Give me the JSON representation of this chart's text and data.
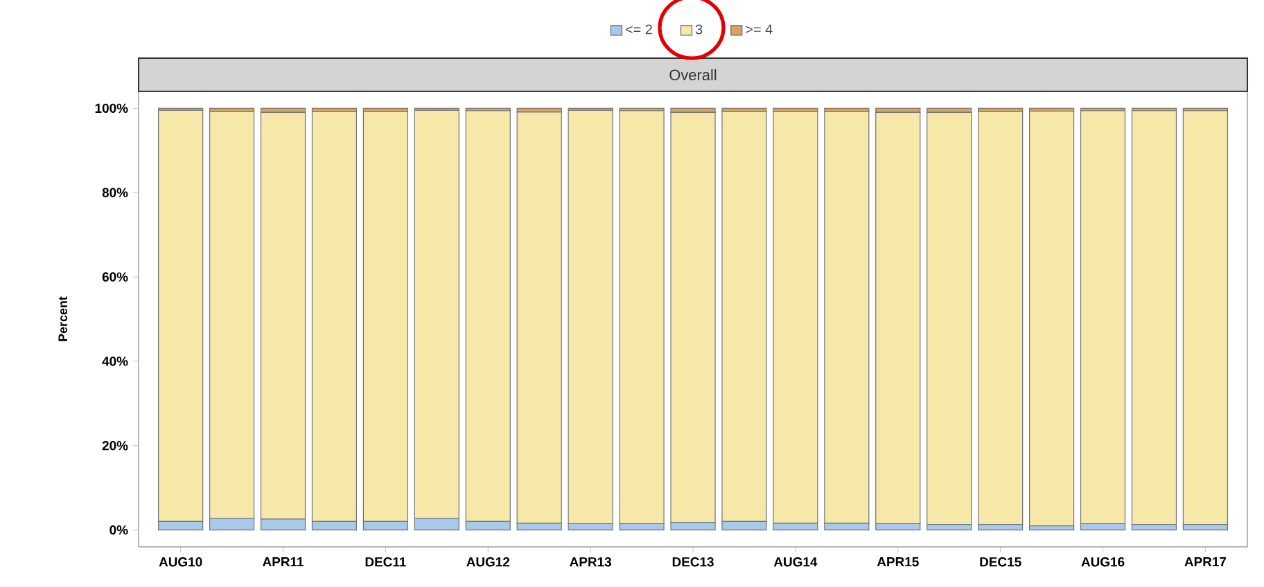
{
  "chart_data": {
    "type": "bar",
    "stacked": true,
    "subtitle": "Overall",
    "ylabel": "Percent",
    "categories": [
      "AUG10",
      null,
      "APR11",
      null,
      "DEC11",
      null,
      "AUG12",
      null,
      "APR13",
      null,
      "DEC13",
      null,
      "AUG14",
      null,
      "APR15",
      null,
      "DEC15",
      null,
      "AUG16",
      null,
      "APR17"
    ],
    "series": [
      {
        "name": "<= 2",
        "color": "#a9c9ea",
        "values": [
          2.0,
          2.8,
          2.6,
          2.0,
          2.0,
          2.8,
          2.0,
          1.6,
          1.5,
          1.5,
          1.8,
          2.0,
          1.6,
          1.6,
          1.5,
          1.3,
          1.3,
          1.0,
          1.5,
          1.3,
          1.3
        ]
      },
      {
        "name": "3",
        "color": "#f6e8a9",
        "values": [
          97.5,
          96.4,
          96.4,
          97.2,
          97.2,
          96.7,
          97.4,
          97.5,
          98.0,
          97.9,
          97.2,
          97.2,
          97.6,
          97.6,
          97.5,
          97.7,
          97.9,
          98.3,
          97.9,
          98.1,
          98.1
        ]
      },
      {
        "name": ">= 4",
        "color": "#d9a262",
        "values": [
          0.5,
          0.8,
          1.0,
          0.8,
          0.8,
          0.5,
          0.6,
          0.9,
          0.5,
          0.6,
          1.0,
          0.8,
          0.8,
          0.8,
          1.0,
          1.0,
          0.8,
          0.7,
          0.6,
          0.6,
          0.6
        ]
      }
    ],
    "ylim": [
      -4,
      104
    ],
    "yticks": [
      {
        "value": 0,
        "label": "0%"
      },
      {
        "value": 20,
        "label": "20%"
      },
      {
        "value": 40,
        "label": "40%"
      },
      {
        "value": 60,
        "label": "60%"
      },
      {
        "value": 80,
        "label": "80%"
      },
      {
        "value": 100,
        "label": "100%"
      }
    ],
    "legend": "top"
  }
}
